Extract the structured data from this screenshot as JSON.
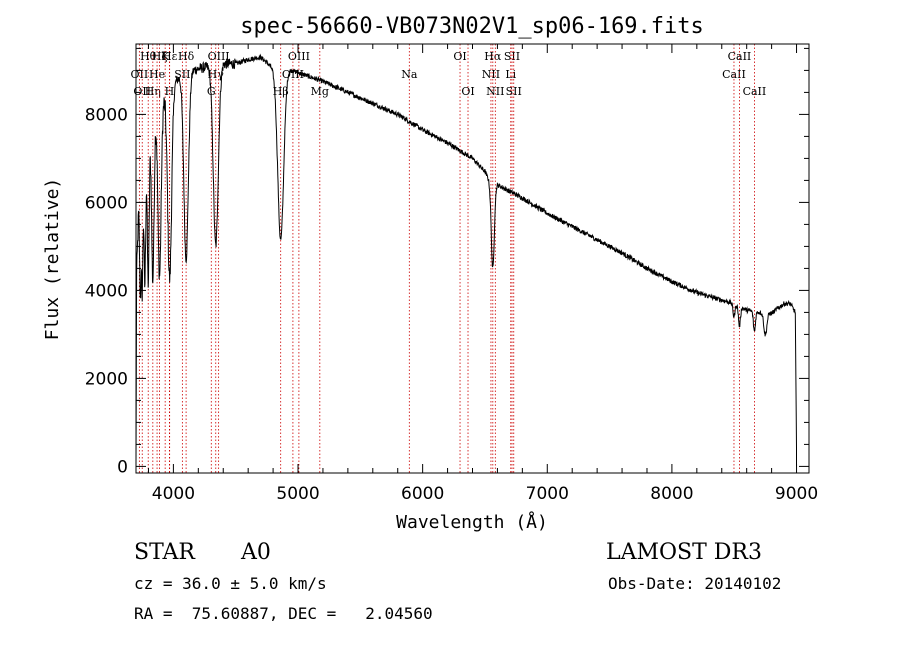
{
  "chart_data": {
    "type": "line",
    "title": "spec-56660-VB073N02V1_sp06-169.fits",
    "xlabel": "Wavelength (Å)",
    "ylabel": "Flux (relative)",
    "xlim": [
      3700,
      9100
    ],
    "ylim": [
      -150,
      9600
    ],
    "x_ticks": [
      4000,
      5000,
      6000,
      7000,
      8000,
      9000
    ],
    "y_ticks": [
      0,
      2000,
      4000,
      6000,
      8000
    ],
    "x_tick_labels": [
      "4000",
      "5000",
      "6000",
      "7000",
      "8000",
      "9000"
    ],
    "y_tick_labels": [
      "0",
      "2000",
      "4000",
      "6000",
      "8000"
    ],
    "series": [
      {
        "name": "spectrum",
        "continuum": [
          [
            3700,
            0
          ],
          [
            3705,
            4300
          ],
          [
            3720,
            5800
          ],
          [
            3740,
            6800
          ],
          [
            3780,
            7600
          ],
          [
            3830,
            7900
          ],
          [
            3880,
            8200
          ],
          [
            3950,
            8500
          ],
          [
            4000,
            8700
          ],
          [
            4050,
            8850
          ],
          [
            4150,
            9000
          ],
          [
            4300,
            9100
          ],
          [
            4400,
            9150
          ],
          [
            4500,
            9150
          ],
          [
            4600,
            9250
          ],
          [
            4700,
            9300
          ],
          [
            4800,
            9050
          ],
          [
            4900,
            9050
          ],
          [
            5000,
            8950
          ],
          [
            5200,
            8750
          ],
          [
            5400,
            8500
          ],
          [
            5600,
            8250
          ],
          [
            5800,
            8000
          ],
          [
            6000,
            7650
          ],
          [
            6200,
            7350
          ],
          [
            6400,
            7000
          ],
          [
            6500,
            6700
          ],
          [
            6550,
            6400
          ],
          [
            6600,
            6400
          ],
          [
            6700,
            6250
          ],
          [
            6800,
            6100
          ],
          [
            7000,
            5750
          ],
          [
            7200,
            5450
          ],
          [
            7400,
            5150
          ],
          [
            7600,
            4850
          ],
          [
            7800,
            4500
          ],
          [
            8000,
            4200
          ],
          [
            8200,
            3950
          ],
          [
            8400,
            3780
          ],
          [
            8500,
            3700
          ],
          [
            8600,
            3550
          ],
          [
            8700,
            3500
          ],
          [
            8800,
            3480
          ],
          [
            8900,
            3700
          ],
          [
            8950,
            3700
          ],
          [
            8990,
            3500
          ],
          [
            9000,
            400
          ]
        ],
        "absorption_lines": [
          {
            "center": 3735,
            "depth": 2600,
            "width": 6
          },
          {
            "center": 3750,
            "depth": 2900,
            "width": 6
          },
          {
            "center": 3771,
            "depth": 3300,
            "width": 7
          },
          {
            "center": 3798,
            "depth": 3500,
            "width": 8
          },
          {
            "center": 3835,
            "depth": 3700,
            "width": 10
          },
          {
            "center": 3889,
            "depth": 3900,
            "width": 13
          },
          {
            "center": 3970,
            "depth": 4300,
            "width": 16
          },
          {
            "center": 4102,
            "depth": 4200,
            "width": 18
          },
          {
            "center": 4340,
            "depth": 4100,
            "width": 20
          },
          {
            "center": 4861,
            "depth": 3900,
            "width": 24
          },
          {
            "center": 6563,
            "depth": 1900,
            "width": 12
          },
          {
            "center": 8498,
            "depth": 300,
            "width": 8
          },
          {
            "center": 8542,
            "depth": 450,
            "width": 8
          },
          {
            "center": 8662,
            "depth": 450,
            "width": 8
          },
          {
            "center": 8750,
            "depth": 500,
            "width": 12
          }
        ]
      }
    ],
    "line_markers": [
      {
        "wave": 3727,
        "label": "OII",
        "row": 2
      },
      {
        "wave": 3750,
        "label": "OII",
        "row": 3
      },
      {
        "wave": 3798,
        "label": "Hθ",
        "row": 1
      },
      {
        "wave": 3835,
        "label": "Hη",
        "row": 3
      },
      {
        "wave": 3869,
        "label": "He",
        "row": 2
      },
      {
        "wave": 3889,
        "label": "Hζ",
        "row": 1
      },
      {
        "wave": 3934,
        "label": "K",
        "row": 1
      },
      {
        "wave": 3968,
        "label": "H",
        "row": 3
      },
      {
        "wave": 3970,
        "label": "Hε",
        "row": 1
      },
      {
        "wave": 4072,
        "label": "SII",
        "row": 2
      },
      {
        "wave": 4102,
        "label": "Hδ",
        "row": 1
      },
      {
        "wave": 4304,
        "label": "G",
        "row": 3
      },
      {
        "wave": 4340,
        "label": "Hγ",
        "row": 2
      },
      {
        "wave": 4363,
        "label": "OIII",
        "row": 1
      },
      {
        "wave": 4861,
        "label": "Hβ",
        "row": 3
      },
      {
        "wave": 4959,
        "label": "OIII",
        "row": 2
      },
      {
        "wave": 5007,
        "label": "OIII",
        "row": 1
      },
      {
        "wave": 5175,
        "label": "Mg",
        "row": 3
      },
      {
        "wave": 5893,
        "label": "Na",
        "row": 2
      },
      {
        "wave": 6300,
        "label": "OI",
        "row": 1
      },
      {
        "wave": 6364,
        "label": "OI",
        "row": 3
      },
      {
        "wave": 6548,
        "label": "NII",
        "row": 2
      },
      {
        "wave": 6563,
        "label": "Hα",
        "row": 1
      },
      {
        "wave": 6583,
        "label": "NII",
        "row": 3
      },
      {
        "wave": 6707,
        "label": "Li",
        "row": 2
      },
      {
        "wave": 6717,
        "label": "SII",
        "row": 1
      },
      {
        "wave": 6731,
        "label": "SII",
        "row": 3
      },
      {
        "wave": 8498,
        "label": "CaII",
        "row": 2
      },
      {
        "wave": 8542,
        "label": "CaII",
        "row": 1
      },
      {
        "wave": 8662,
        "label": "CaII",
        "row": 3
      }
    ]
  },
  "info": {
    "object_class": "STAR",
    "subclass": "A0",
    "survey": "LAMOST DR3",
    "redshift": "cz = 36.0 ± 5.0 km/s",
    "obs_date": "Obs-Date: 20140102",
    "coords": "RA =  75.60887, DEC =   2.04560"
  },
  "colors": {
    "line_marker": "#cc0000",
    "spectrum": "#000000",
    "axes": "#000000"
  }
}
